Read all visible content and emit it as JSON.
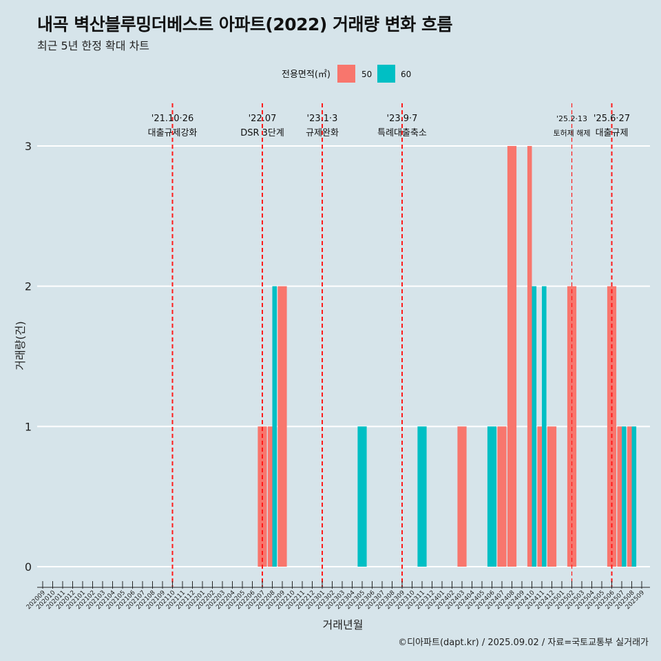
{
  "title": "내곡 벽산블루밍더베스트 아파트(2022) 거래량 변화 흐름",
  "subtitle": "최근 5년 한정 확대 차트",
  "caption": "©디아파트(dapt.kr) / 2025.09.02 / 자료=국토교통부 실거래가",
  "colors": {
    "s50": "#F8766D",
    "s60": "#00BFC4",
    "vline": "#ff1a1a",
    "background": "#d6e4ea",
    "grid": "#ffffff"
  },
  "chart_data": {
    "type": "bar",
    "title": "내곡 벽산블루밍더베스트 아파트(2022) 거래량 변화 흐름",
    "subtitle": "최근 5년 한정 확대 차트",
    "xlabel": "거래년월",
    "ylabel": "거래량(건)",
    "ylim": [
      0,
      3
    ],
    "yticks": [
      0,
      1,
      2,
      3
    ],
    "grid": true,
    "legend": {
      "title": "전용면적(㎡)",
      "position": "top"
    },
    "categories": [
      "202009",
      "202010",
      "202011",
      "202012",
      "202101",
      "202102",
      "202103",
      "202104",
      "202105",
      "202106",
      "202107",
      "202108",
      "202109",
      "202110",
      "202111",
      "202112",
      "202201",
      "202202",
      "202203",
      "202204",
      "202205",
      "202206",
      "202207",
      "202208",
      "202209",
      "202210",
      "202211",
      "202212",
      "202301",
      "202302",
      "202303",
      "202304",
      "202305",
      "202306",
      "202307",
      "202308",
      "202309",
      "202310",
      "202311",
      "202312",
      "202401",
      "202402",
      "202403",
      "202404",
      "202405",
      "202406",
      "202407",
      "202408",
      "202409",
      "202410",
      "202411",
      "202412",
      "202501",
      "202502",
      "202503",
      "202504",
      "202505",
      "202506",
      "202507",
      "202508",
      "202509"
    ],
    "series": [
      {
        "name": "50",
        "color": "#F8766D",
        "points": [
          {
            "x": "202207",
            "y": 1
          },
          {
            "x": "202208",
            "y": 1
          },
          {
            "x": "202209",
            "y": 2
          },
          {
            "x": "202403",
            "y": 1
          },
          {
            "x": "202407",
            "y": 1
          },
          {
            "x": "202408",
            "y": 3
          },
          {
            "x": "202410",
            "y": 3
          },
          {
            "x": "202411",
            "y": 1
          },
          {
            "x": "202412",
            "y": 1
          },
          {
            "x": "202502",
            "y": 2
          },
          {
            "x": "202506",
            "y": 2
          },
          {
            "x": "202507",
            "y": 1
          },
          {
            "x": "202508",
            "y": 1
          }
        ]
      },
      {
        "name": "60",
        "color": "#00BFC4",
        "points": [
          {
            "x": "202208",
            "y": 2
          },
          {
            "x": "202305",
            "y": 1
          },
          {
            "x": "202311",
            "y": 1
          },
          {
            "x": "202406",
            "y": 1
          },
          {
            "x": "202410",
            "y": 2
          },
          {
            "x": "202411",
            "y": 2
          },
          {
            "x": "202507",
            "y": 1
          },
          {
            "x": "202508",
            "y": 1
          }
        ]
      }
    ],
    "annotations": [
      {
        "x": "202110",
        "date": "'21.10·26",
        "label": "대출규제강화"
      },
      {
        "x": "202207",
        "date": "'22.07",
        "label": "DSR 3단계"
      },
      {
        "x": "202301",
        "date": "'23.1·3",
        "label": "규제완화"
      },
      {
        "x": "202309",
        "date": "'23.9·7",
        "label": "특례대출축소"
      },
      {
        "x": "202502",
        "date": "'25.2·13",
        "label": "토허제 해제"
      },
      {
        "x": "202506",
        "date": "'25.6·27",
        "label": "대출규제"
      }
    ]
  }
}
